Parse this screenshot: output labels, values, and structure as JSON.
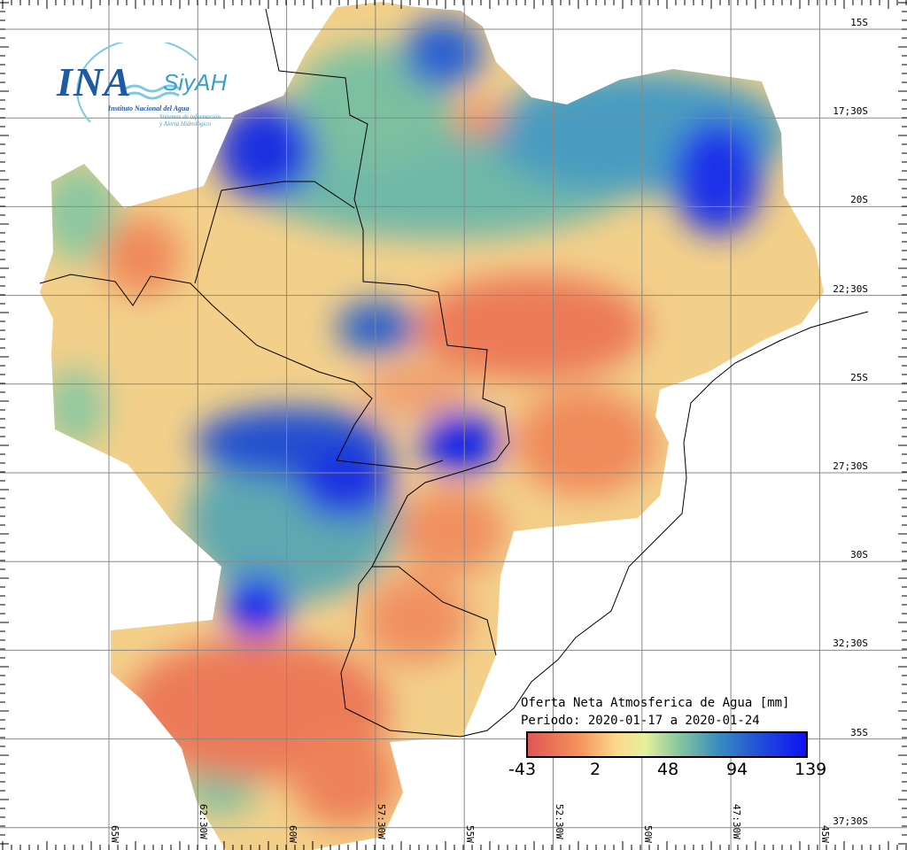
{
  "logo": {
    "ina": "INA",
    "siyah": "SiyAH",
    "institute": "Instituto Nacional del Agua",
    "system_line1": "Sistemas de información",
    "system_line2": "y Alerta Hidrológico"
  },
  "legend": {
    "title": "Oferta Neta Atmosferica de Agua [mm]",
    "period": "Periodo: 2020-01-17 a 2020-01-24",
    "ticks": [
      "-43",
      "2",
      "48",
      "94",
      "139"
    ],
    "min": -43,
    "max": 139,
    "colors": [
      "#e05555",
      "#f5915a",
      "#fbd98c",
      "#e5f09a",
      "#8ac8a0",
      "#3a8fbc",
      "#2050d8",
      "#1010f5"
    ]
  },
  "latitude_labels": [
    "15S",
    "17;30S",
    "20S",
    "22;30S",
    "25S",
    "27;30S",
    "30S",
    "32;30S",
    "35S",
    "37;30S"
  ],
  "longitude_labels": [
    "65W",
    "62:30W",
    "60W",
    "57:30W",
    "55W",
    "52:30W",
    "50W",
    "47:30W",
    "45W"
  ]
}
